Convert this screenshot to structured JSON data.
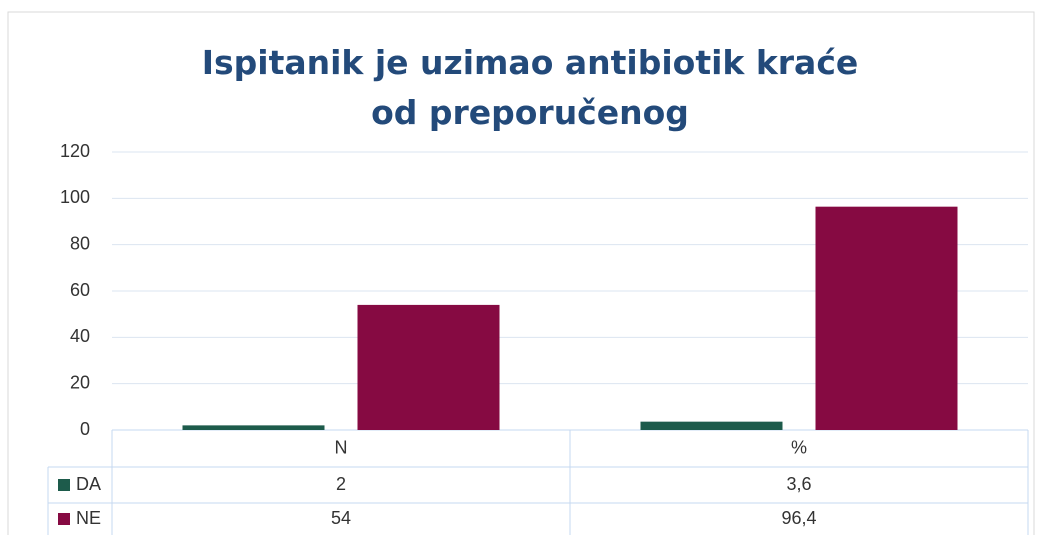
{
  "chart_data": {
    "type": "bar",
    "title": "Ispitanik je uzimao antibiotik kraće od preporučenog",
    "categories": [
      "N",
      "%"
    ],
    "series": [
      {
        "name": "DA",
        "color": "#1d5b4b",
        "values": [
          2,
          3.6
        ],
        "value_labels": [
          "2",
          "3,6"
        ]
      },
      {
        "name": "NE",
        "color": "#860a42",
        "values": [
          54,
          96.4
        ],
        "value_labels": [
          "54",
          "96,4"
        ]
      }
    ],
    "ylim": [
      0,
      120
    ],
    "yticks": [
      0,
      20,
      40,
      60,
      80,
      100,
      120
    ],
    "grid": true
  }
}
